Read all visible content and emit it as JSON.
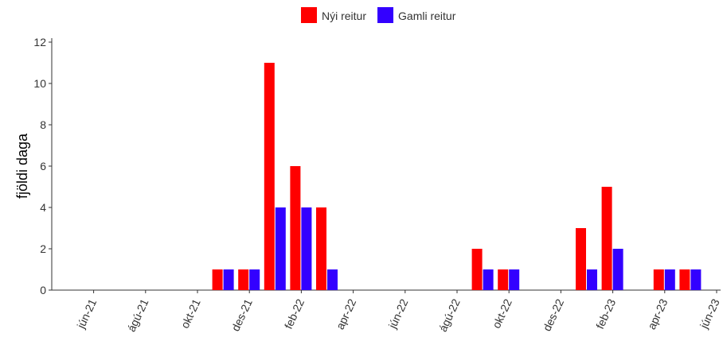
{
  "chart_data": {
    "type": "bar",
    "ylabel": "fjöldi daga",
    "categories": [
      null,
      "jún-21",
      null,
      "ágú-21",
      null,
      "okt-21",
      null,
      "des-21",
      null,
      "feb-22",
      null,
      "apr-22",
      null,
      "jún-22",
      null,
      "ágú-22",
      null,
      "okt-22",
      null,
      "des-22",
      null,
      "feb-23",
      null,
      "apr-23",
      null,
      "jún-23"
    ],
    "series": [
      {
        "name": "Nýi reitur",
        "color": "#ff0000",
        "values": [
          0,
          0,
          0,
          0,
          0,
          0,
          1,
          1,
          11,
          6,
          4,
          0,
          0,
          0,
          0,
          0,
          2,
          1,
          0,
          0,
          3,
          5,
          0,
          1,
          1,
          0
        ]
      },
      {
        "name": "Gamli reitur",
        "color": "#3300ff",
        "values": [
          0,
          0,
          0,
          0,
          0,
          0,
          1,
          1,
          4,
          4,
          1,
          0,
          0,
          0,
          0,
          0,
          1,
          1,
          0,
          0,
          1,
          2,
          0,
          1,
          1,
          0
        ]
      }
    ],
    "ylim": [
      0,
      12
    ],
    "yticks": [
      0,
      2,
      4,
      6,
      8,
      10,
      12
    ],
    "legend": "top"
  }
}
